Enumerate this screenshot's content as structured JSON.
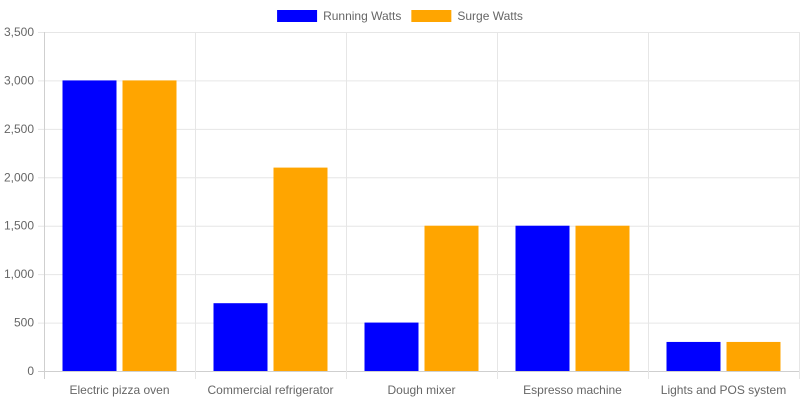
{
  "chart_data": {
    "type": "bar",
    "categories": [
      "Electric pizza oven",
      "Commercial refrigerator",
      "Dough mixer",
      "Espresso machine",
      "Lights and POS system"
    ],
    "series": [
      {
        "name": "Running Watts",
        "values": [
          3000,
          700,
          500,
          1500,
          300
        ],
        "color": "#0000FF"
      },
      {
        "name": "Surge Watts",
        "values": [
          3000,
          2100,
          1500,
          1500,
          300
        ],
        "color": "#FFA500"
      }
    ],
    "title": "",
    "xlabel": "",
    "ylabel": "",
    "ylim": [
      0,
      3500
    ],
    "yticks": [
      0,
      500,
      1000,
      1500,
      2000,
      2500,
      3000,
      3500
    ],
    "ytick_labels": [
      "0",
      "500",
      "1,000",
      "1,500",
      "2,000",
      "2,500",
      "3,000",
      "3,500"
    ],
    "grid": true,
    "legend_position": "top"
  }
}
